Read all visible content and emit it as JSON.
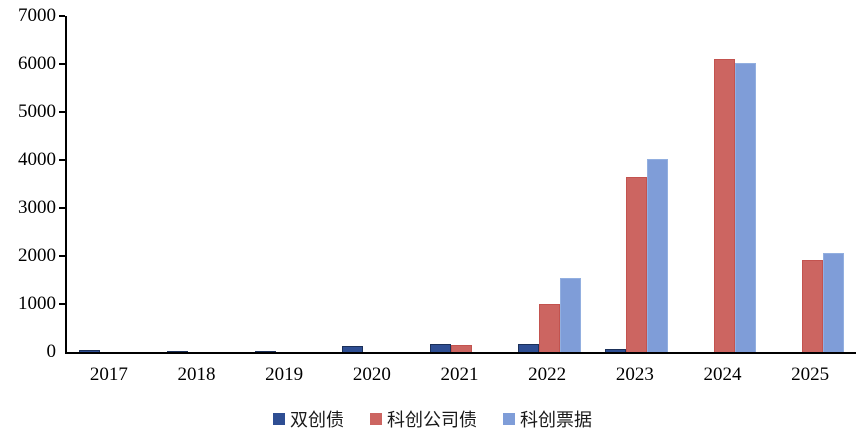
{
  "chart_data": {
    "type": "bar",
    "title": "",
    "xlabel": "",
    "ylabel": "",
    "categories": [
      "2017",
      "2018",
      "2019",
      "2020",
      "2021",
      "2022",
      "2023",
      "2024",
      "2025"
    ],
    "series": [
      {
        "name": "双创债",
        "color": "#2e4e93",
        "border_color": "#1b3059",
        "values": [
          40,
          30,
          25,
          130,
          165,
          160,
          60,
          0,
          0
        ]
      },
      {
        "name": "科创公司债",
        "color": "#cc6561",
        "border_color": "#c3534f",
        "values": [
          0,
          0,
          0,
          0,
          140,
          1000,
          3650,
          6100,
          1920
        ]
      },
      {
        "name": "科创票据",
        "color": "#7f9dd8",
        "border_color": "#92afe0",
        "values": [
          0,
          0,
          0,
          0,
          0,
          1550,
          4030,
          6030,
          2070
        ]
      }
    ],
    "ylim": [
      0,
      7000
    ],
    "yticks": [
      0,
      1000,
      2000,
      3000,
      4000,
      5000,
      6000,
      7000
    ],
    "grid": false,
    "legend_position": "bottom",
    "axis_color": "#000000",
    "background_color": "#ffffff"
  }
}
